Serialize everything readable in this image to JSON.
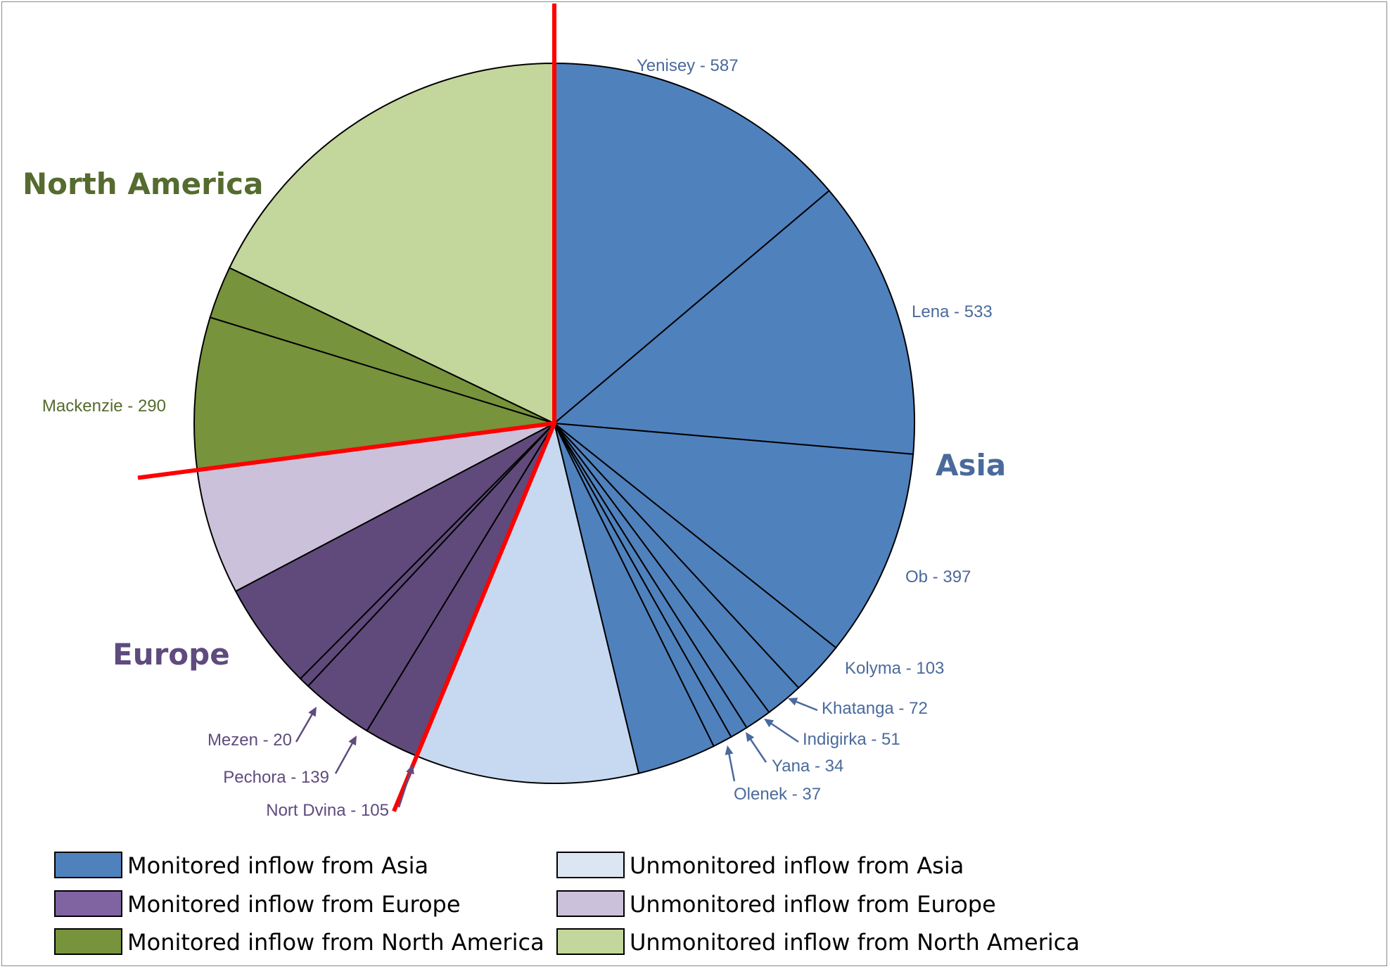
{
  "chart_data": {
    "type": "pie",
    "slices": [
      {
        "name": "Yenisey",
        "label": "Yenisey - 587",
        "value": 587,
        "category": "Monitored inflow from Asia"
      },
      {
        "name": "Lena",
        "label": "Lena - 533",
        "value": 533,
        "category": "Monitored inflow from Asia"
      },
      {
        "name": "Ob",
        "label": "Ob - 397",
        "value": 397,
        "category": "Monitored inflow from Asia"
      },
      {
        "name": "Kolyma",
        "label": "Kolyma - 103",
        "value": 103,
        "category": "Monitored inflow from Asia"
      },
      {
        "name": "Khatanga",
        "label": "Khatanga - 72",
        "value": 72,
        "category": "Monitored inflow from Asia"
      },
      {
        "name": "Indigirka",
        "label": "Indigirka - 51",
        "value": 51,
        "category": "Monitored inflow from Asia"
      },
      {
        "name": "Yana",
        "label": "Yana - 34",
        "value": 34,
        "category": "Monitored inflow from Asia"
      },
      {
        "name": "Olenek",
        "label": "Olenek - 37",
        "value": 37,
        "category": "Monitored inflow from Asia"
      },
      {
        "name": "",
        "label": "",
        "value": 150,
        "category": "Monitored inflow from Asia"
      },
      {
        "name": "",
        "label": "",
        "value": 425,
        "category": "Unmonitored inflow from Asia"
      },
      {
        "name": "Nort Dvina",
        "label": "Nort Dvina - 105",
        "value": 105,
        "category": "Monitored inflow from Europe"
      },
      {
        "name": "Pechora",
        "label": "Pechora - 139",
        "value": 139,
        "category": "Monitored inflow from Europe"
      },
      {
        "name": "Mezen",
        "label": "Mezen - 20",
        "value": 20,
        "category": "Monitored inflow from Europe"
      },
      {
        "name": "",
        "label": "",
        "value": 205,
        "category": "Monitored inflow from Europe"
      },
      {
        "name": "",
        "label": "",
        "value": 240,
        "category": "Unmonitored inflow from Europe"
      },
      {
        "name": "Mackenzie",
        "label": "Mackenzie - 290",
        "value": 290,
        "category": "Monitored inflow from North America"
      },
      {
        "name": "",
        "label": "",
        "value": 100,
        "category": "Monitored inflow from North America"
      },
      {
        "name": "",
        "label": "",
        "value": 760,
        "category": "Unmonitored inflow from North America"
      }
    ],
    "region_labels": [
      "North America",
      "Asia",
      "Europe"
    ],
    "legend": [
      {
        "label": "Monitored inflow from Asia",
        "color": "#4f81bd"
      },
      {
        "label": "Unmonitored inflow from Asia",
        "color": "#dce6f2"
      },
      {
        "label": "Monitored inflow from Europe",
        "color": "#8064a2"
      },
      {
        "label": "Unmonitored inflow from Europe",
        "color": "#ccc1da"
      },
      {
        "label": "Monitored inflow from North America",
        "color": "#77933c"
      },
      {
        "label": "Unmonitored inflow from North America",
        "color": "#c3d69b"
      }
    ],
    "legend_placement": "bottom",
    "colors": {
      "Monitored inflow from Asia": "#4f81bd",
      "Unmonitored inflow from Asia": "#c6d9f1",
      "Monitored inflow from Europe": "#604a7b",
      "Unmonitored inflow from Europe": "#ccc1da",
      "Monitored inflow from North America": "#77933c",
      "Unmonitored inflow from North America": "#c3d69b",
      "region_divider": "#ff0000",
      "asia_text": "#4a6a9c",
      "europe_text": "#5f4b7d",
      "na_text": "#556b2f"
    }
  }
}
